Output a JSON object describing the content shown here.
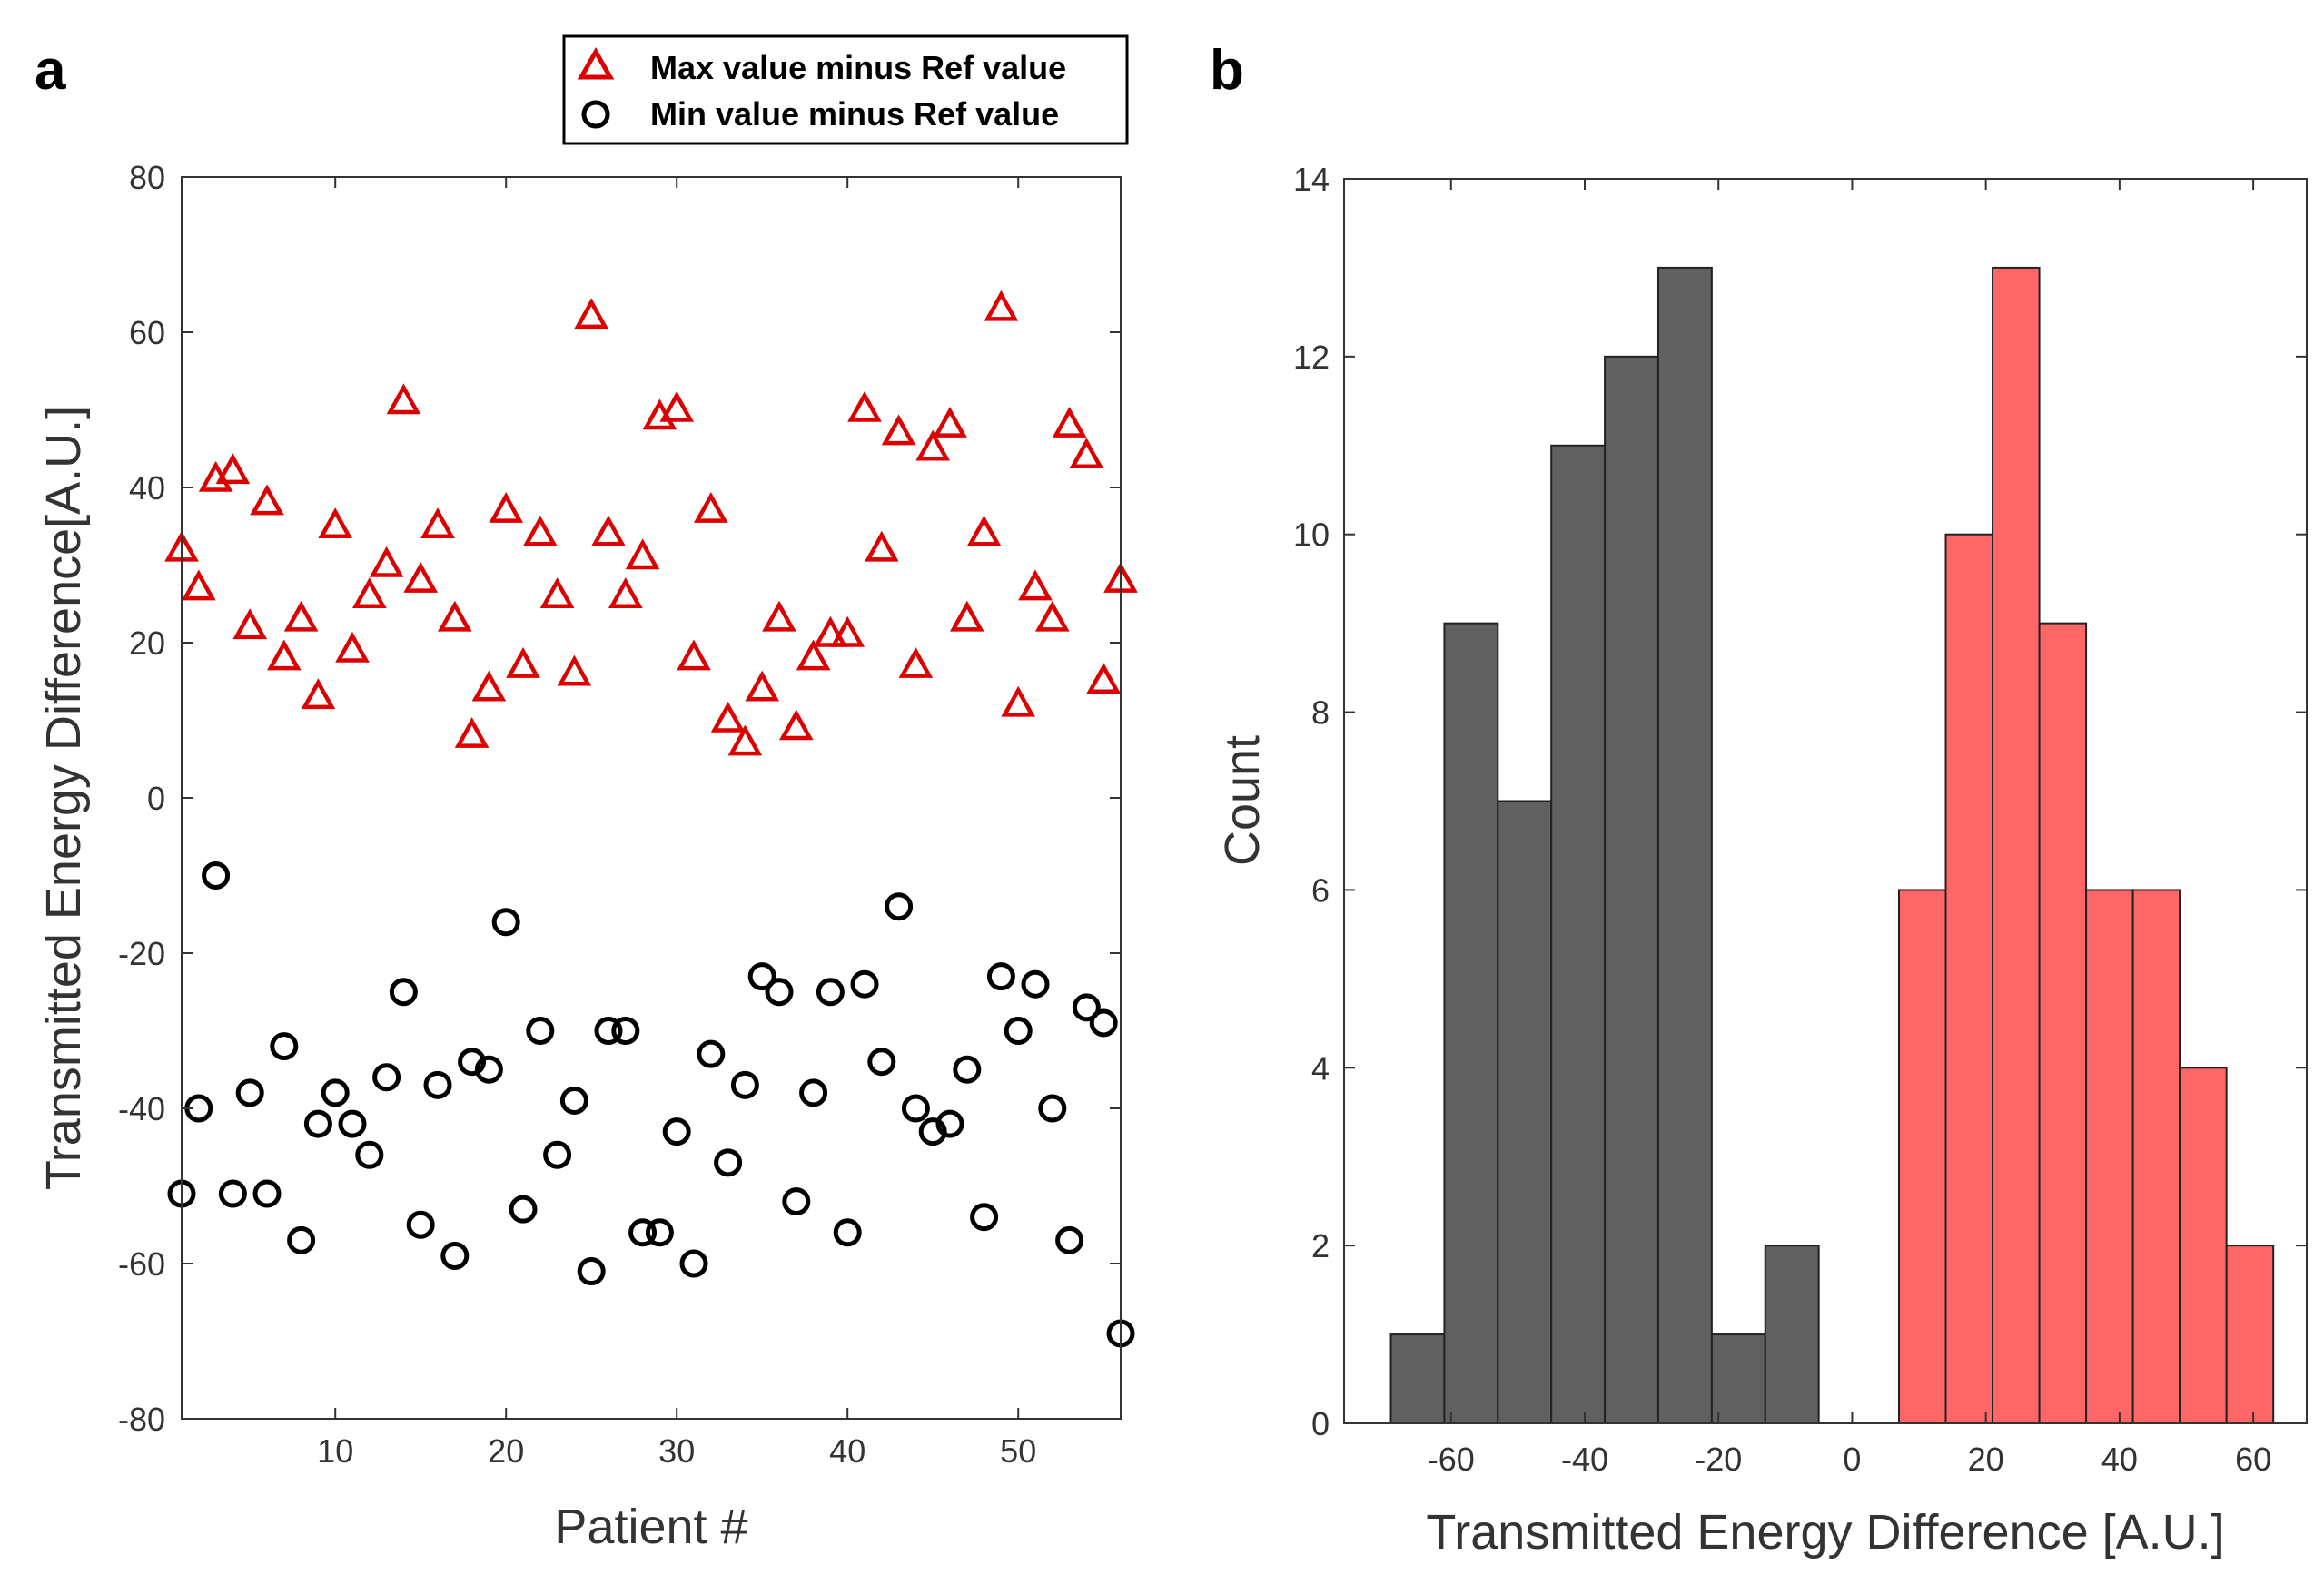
{
  "colors": {
    "max_series": "#dd0000",
    "min_series": "#000000",
    "hist_neg": "#606060",
    "hist_pos": "#ff6666",
    "axis": "#333333"
  },
  "panels": {
    "a": {
      "letter": "a"
    },
    "b": {
      "letter": "b"
    }
  },
  "chart_data": [
    {
      "type": "scatter",
      "panel": "a",
      "title": "",
      "xlabel": "Patient #",
      "ylabel": "Transmitted Energy Difference[A.U.]",
      "xlim": [
        1,
        56
      ],
      "ylim": [
        -80,
        80
      ],
      "xticks": [
        10,
        20,
        30,
        40,
        50
      ],
      "yticks": [
        -80,
        -60,
        -40,
        -20,
        0,
        20,
        40,
        60,
        80
      ],
      "grid": false,
      "legend_position": "top-center",
      "x": [
        1,
        2,
        3,
        4,
        5,
        6,
        7,
        8,
        9,
        10,
        11,
        12,
        13,
        14,
        15,
        16,
        17,
        18,
        19,
        20,
        21,
        22,
        23,
        24,
        25,
        26,
        27,
        28,
        29,
        30,
        31,
        32,
        33,
        34,
        35,
        36,
        37,
        38,
        39,
        40,
        41,
        42,
        43,
        44,
        45,
        46,
        47,
        48,
        49,
        50,
        51,
        52,
        53,
        54,
        55,
        56
      ],
      "series": [
        {
          "name": "Max value minus Ref value",
          "marker": "triangle",
          "values": [
            32,
            27,
            41,
            42,
            22,
            38,
            18,
            23,
            13,
            35,
            19,
            26,
            30,
            51,
            28,
            35,
            23,
            8,
            14,
            37,
            17,
            34,
            26,
            16,
            62,
            34,
            26,
            31,
            49,
            50,
            18,
            37,
            10,
            7,
            14,
            23,
            9,
            18,
            21,
            21,
            50,
            32,
            47,
            17,
            45,
            48,
            23,
            34,
            63,
            12,
            27,
            23,
            48,
            44,
            15,
            28
          ]
        },
        {
          "name": "Min value minus Ref value",
          "marker": "circle",
          "values": [
            -51,
            -40,
            -10,
            -51,
            -38,
            -51,
            -32,
            -57,
            -42,
            -38,
            -42,
            -46,
            -36,
            -25,
            -55,
            -37,
            -59,
            -34,
            -35,
            -16,
            -53,
            -30,
            -46,
            -39,
            -61,
            -30,
            -30,
            -56,
            -56,
            -43,
            -60,
            -33,
            -47,
            -37,
            -23,
            -25,
            -52,
            -38,
            -25,
            -56,
            -24,
            -34,
            -14,
            -40,
            -43,
            -42,
            -35,
            -54,
            -23,
            -30,
            -24,
            -40,
            -57,
            -27,
            -29,
            -69
          ]
        }
      ]
    },
    {
      "type": "bar",
      "panel": "b",
      "title": "",
      "xlabel": "Transmitted Energy Difference [A.U.]",
      "ylabel": "Count",
      "xlim": [
        -76,
        68
      ],
      "ylim": [
        0,
        14
      ],
      "xticks": [
        -60,
        -40,
        -20,
        0,
        20,
        40,
        60
      ],
      "yticks": [
        0,
        2,
        4,
        6,
        8,
        10,
        12,
        14
      ],
      "grid": false,
      "series": [
        {
          "name": "Min value minus Ref value",
          "bin_edges": [
            -69,
            -61,
            -53,
            -45,
            -37,
            -29,
            -21,
            -13,
            -5
          ],
          "counts": [
            1,
            9,
            7,
            11,
            12,
            13,
            1,
            2
          ]
        },
        {
          "name": "Max value minus Ref value",
          "bin_edges": [
            7,
            14,
            21,
            28,
            35,
            42,
            49,
            56,
            63
          ],
          "counts": [
            6,
            10,
            13,
            9,
            6,
            6,
            4,
            2
          ]
        }
      ]
    }
  ]
}
